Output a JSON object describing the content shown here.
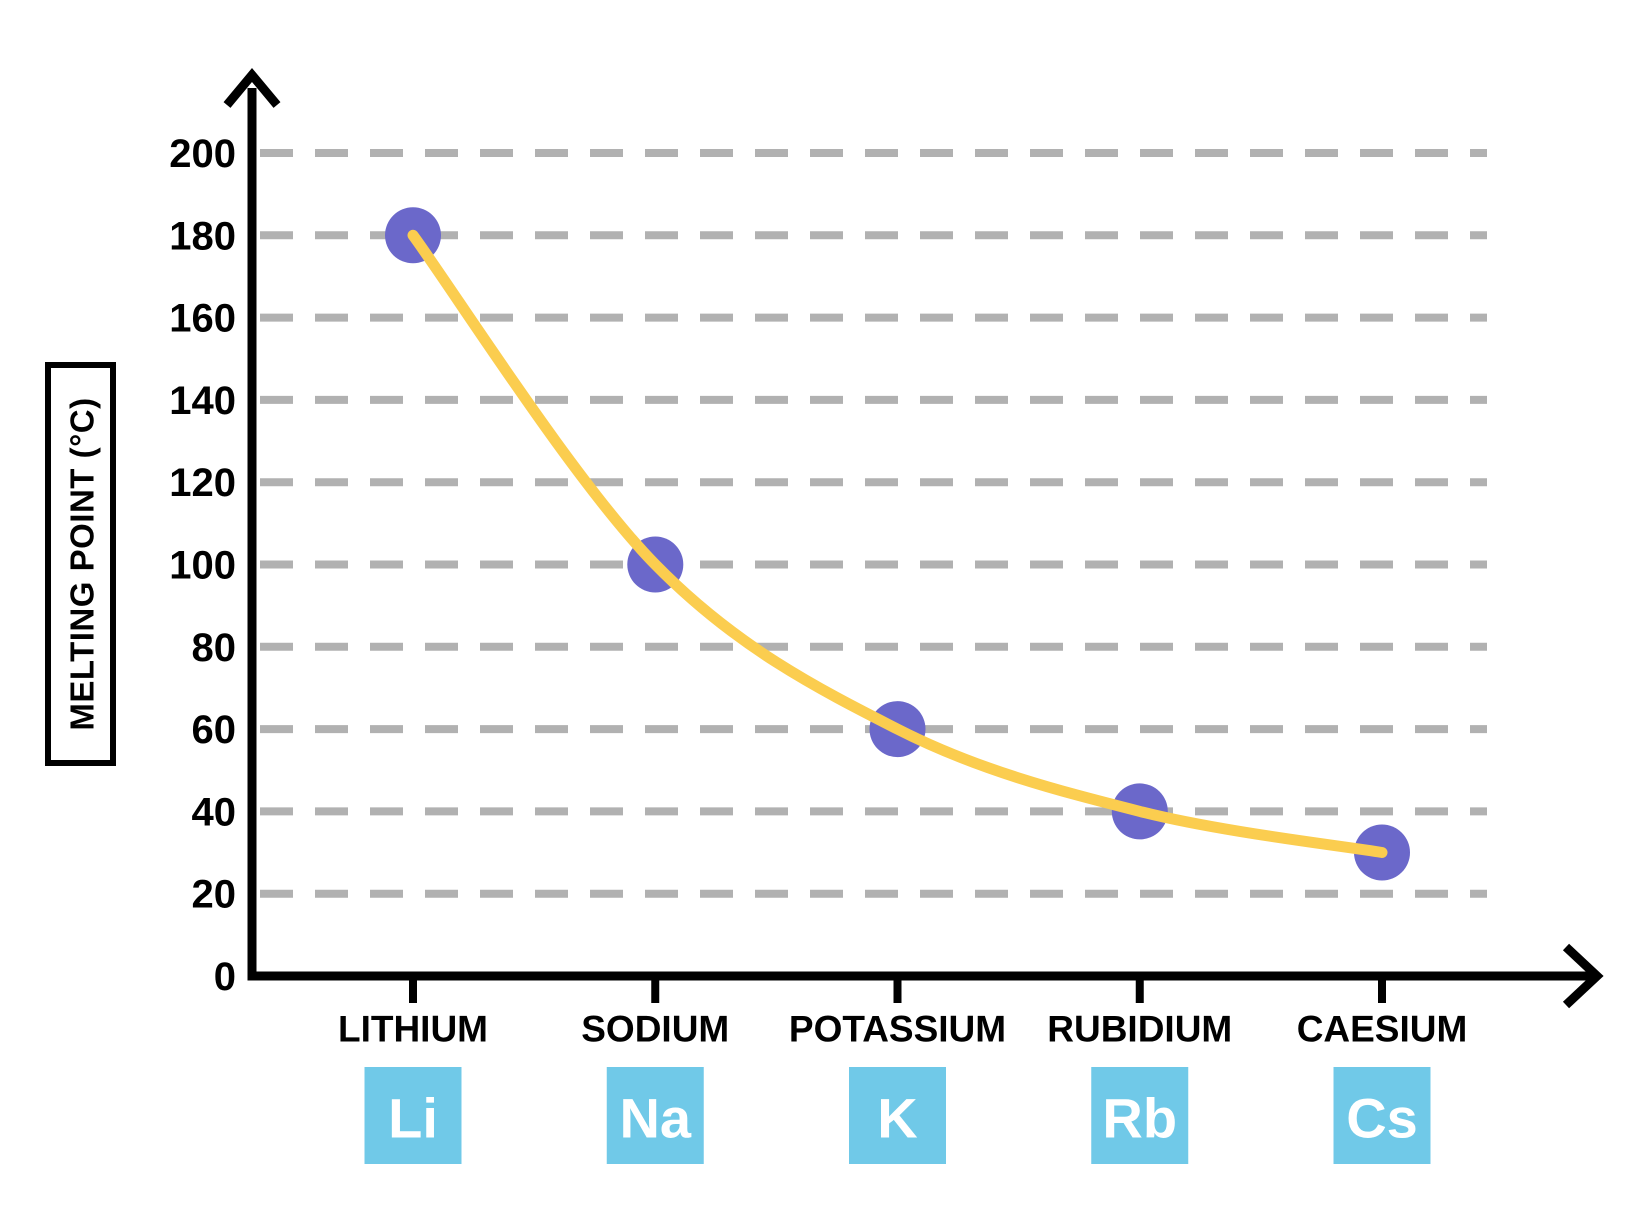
{
  "chart_data": {
    "type": "line",
    "title": "",
    "subtitle": "",
    "xlabel": "",
    "ylabel": "MELTING POINT (°C)",
    "categories": [
      "LITHIUM",
      "SODIUM",
      "POTASSIUM",
      "RUBIDIUM",
      "CAESIUM"
    ],
    "element_symbols": [
      "Li",
      "Na",
      "K",
      "Rb",
      "Cs"
    ],
    "series": [
      {
        "name": "Melting point (°C)",
        "values": [
          180,
          100,
          60,
          40,
          30
        ]
      }
    ],
    "y_ticks": [
      0,
      20,
      40,
      60,
      80,
      100,
      120,
      140,
      160,
      180,
      200
    ],
    "ylim": [
      0,
      210
    ],
    "grid": {
      "horizontal": true,
      "vertical": false,
      "style": "dashed"
    },
    "legend": "none",
    "marker": "filled-circle",
    "colors": {
      "curve": "#FBCD4F",
      "point": "#6B68CA",
      "symbol_box": "#70C9E8",
      "symbol_text": "#FFFFFF",
      "gridline": "#B1B1B1",
      "axis": "#000000",
      "text": "#000000",
      "background": "#FFFFFF"
    }
  }
}
